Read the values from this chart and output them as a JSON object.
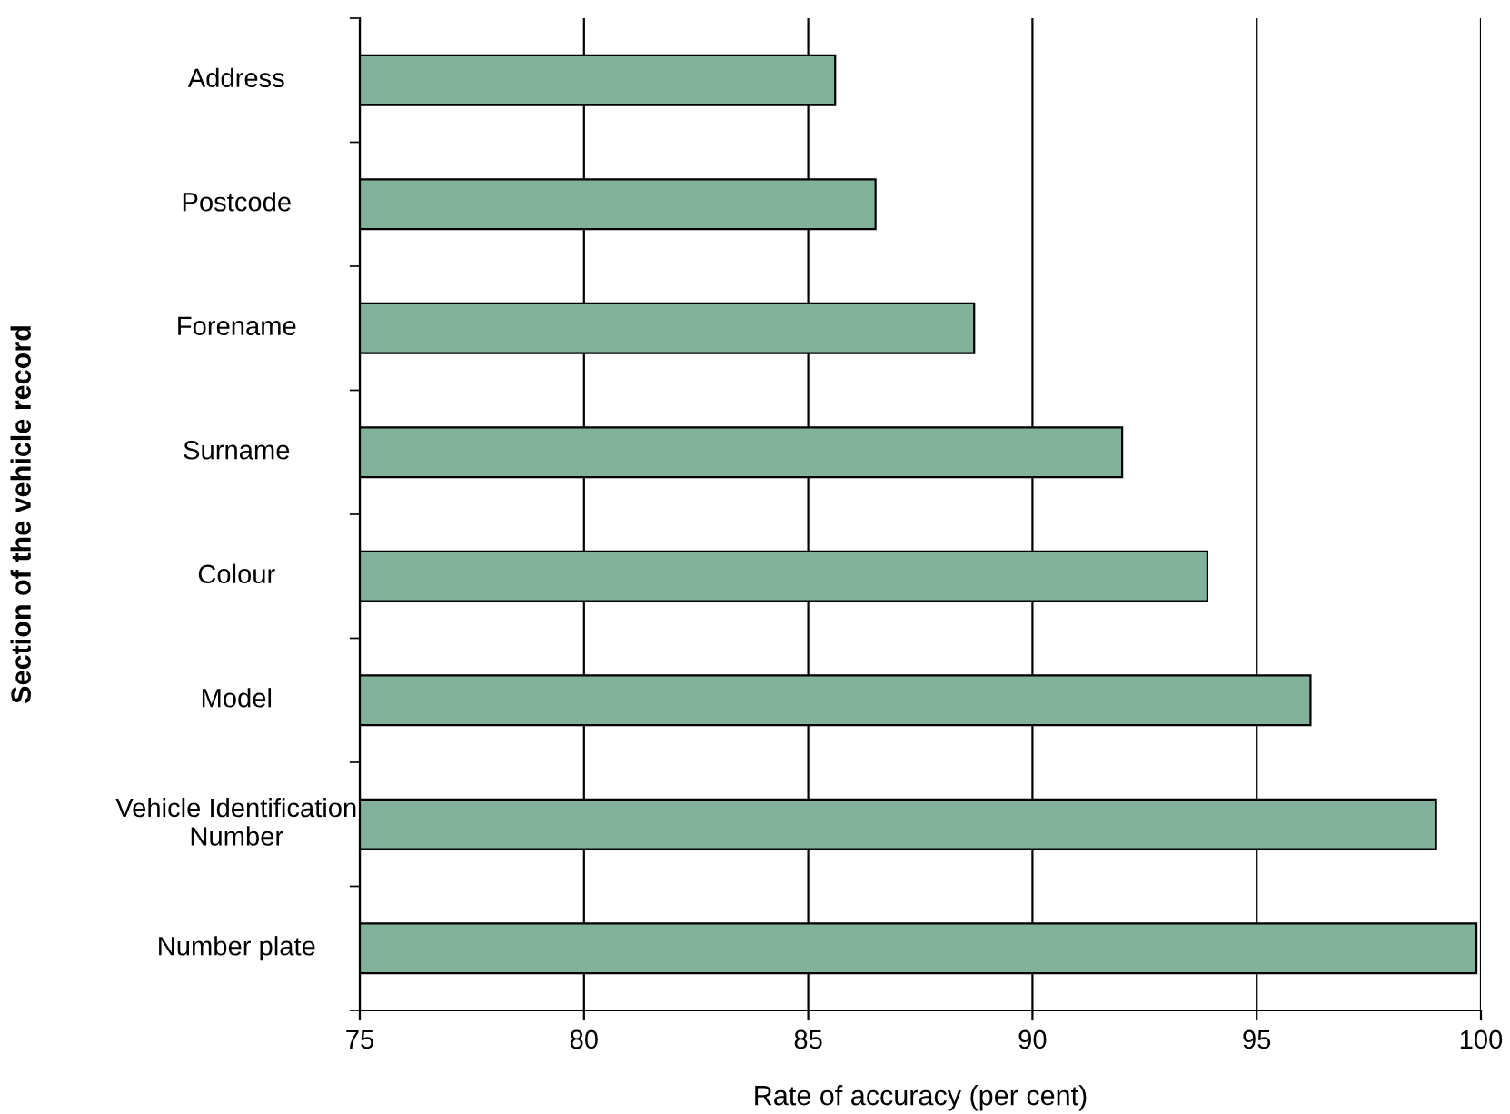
{
  "chart_data": {
    "type": "bar",
    "orientation": "horizontal",
    "xlabel": "Rate of accuracy (per cent)",
    "ylabel": "Section of the vehicle record",
    "categories": [
      "Address",
      "Postcode",
      "Forename",
      "Surname",
      "Colour",
      "Model",
      "Vehicle Identification\nNumber",
      "Number plate"
    ],
    "values": [
      85.6,
      86.5,
      88.7,
      92.0,
      93.9,
      96.2,
      99.0,
      99.9
    ],
    "color": "#82b29c",
    "xlim": [
      75,
      100
    ],
    "xticks": [
      75,
      80,
      85,
      90,
      95,
      100
    ],
    "grid": "x"
  }
}
